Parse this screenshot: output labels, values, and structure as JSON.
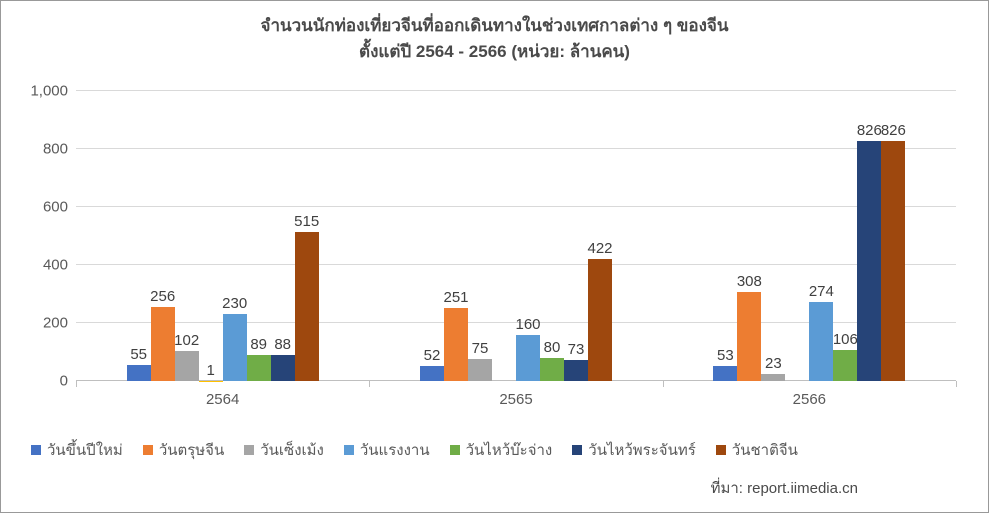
{
  "chart": {
    "type": "bar",
    "title_line1": "จำนวนนักท่องเที่ยวจีนที่ออกเดินทางในช่วงเทศกาลต่าง ๆ ของจีน",
    "title_line2": "ตั้งแต่ปี 2564 - 2566 (หน่วย: ล้านคน)",
    "title_fontsize": 17,
    "title_color": "#4a4a4a",
    "y_axis": {
      "min": 0,
      "max": 1000,
      "step": 200,
      "ticks": [
        "0",
        "200",
        "400",
        "600",
        "800",
        "1,000"
      ],
      "label_fontsize": 15,
      "label_color": "#595959"
    },
    "grid_color": "#d9d9d9",
    "baseline_color": "#bfbfbf",
    "background_color": "#ffffff",
    "categories": [
      "2564",
      "2565",
      "2566"
    ],
    "x_label_fontsize": 15,
    "x_label_color": "#595959",
    "series": [
      {
        "name": "วันขึ้นปีใหม่",
        "color": "#4472c4"
      },
      {
        "name": "วันตรุษจีน",
        "color": "#ed7d31"
      },
      {
        "name": "วันเซ็งเม้ง",
        "color": "#a5a5a5"
      },
      {
        "name": "",
        "color": "#ffc000"
      },
      {
        "name": "วันแรงงาน",
        "color": "#5b9bd5"
      },
      {
        "name": "วันไหว้บ๊ะจ่าง",
        "color": "#70ad47"
      },
      {
        "name": "วันไหว้พระจันทร์",
        "color": "#264478"
      },
      {
        "name": "วันชาติจีน",
        "color": "#9e480e"
      }
    ],
    "data": {
      "2564": [
        55,
        256,
        102,
        1,
        230,
        89,
        88,
        515
      ],
      "2565": [
        52,
        251,
        75,
        null,
        160,
        80,
        73,
        422
      ],
      "2566": [
        53,
        308,
        23,
        null,
        274,
        106,
        826,
        826
      ]
    },
    "bar_label_fontsize": 15,
    "bar_label_color": "#404040",
    "legend_fontsize": 15,
    "legend_color": "#595959",
    "source_label": "ที่มา: report.iimedia.cn",
    "source_fontsize": 15
  }
}
